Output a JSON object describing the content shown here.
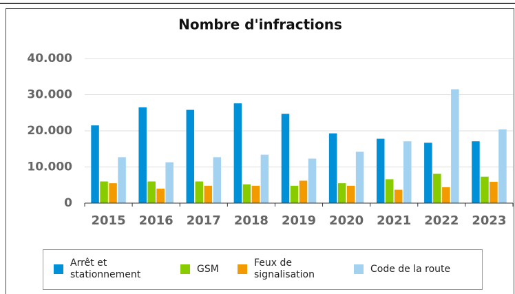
{
  "chart_data": {
    "type": "bar",
    "title": "Nombre d'infractions",
    "categories": [
      "2015",
      "2016",
      "2017",
      "2018",
      "2019",
      "2020",
      "2021",
      "2022",
      "2023"
    ],
    "series": [
      {
        "name": "Arrêt et stationnement",
        "color": "#0090d8",
        "values": [
          21500,
          26500,
          25800,
          27600,
          24700,
          19300,
          17800,
          16700,
          17100
        ]
      },
      {
        "name": "GSM",
        "color": "#88cc00",
        "values": [
          6000,
          6000,
          6000,
          5200,
          4800,
          5500,
          6600,
          8100,
          7300
        ]
      },
      {
        "name": "Feux de signalisation",
        "color": "#f39a00",
        "values": [
          5500,
          4000,
          4800,
          4800,
          6200,
          4800,
          3700,
          4400,
          5900
        ]
      },
      {
        "name": "Code de la route",
        "color": "#a3d1f0",
        "values": [
          12700,
          11300,
          12700,
          13400,
          12300,
          14200,
          17100,
          31500,
          20400
        ]
      }
    ],
    "ylim": [
      0,
      40000
    ],
    "yticks": [
      0,
      {
        "value": 10000,
        "label": "10.000"
      },
      {
        "value": 20000,
        "label": "20.000"
      },
      {
        "value": 30000,
        "label": "30.000"
      },
      {
        "value": 40000,
        "label": "40.000"
      }
    ],
    "grid": true
  }
}
